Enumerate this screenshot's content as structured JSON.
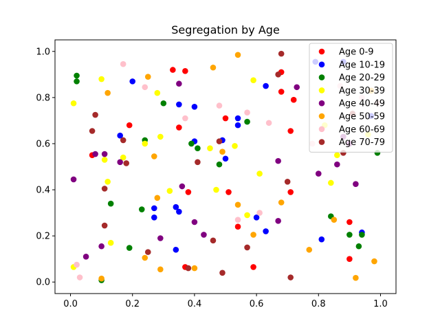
{
  "chart_data": {
    "type": "scatter",
    "title": "Segregation by Age",
    "xlabel": "",
    "ylabel": "",
    "xlim": [
      -0.05,
      1.05
    ],
    "ylim": [
      -0.05,
      1.05
    ],
    "xticks": [
      "0.0",
      "0.2",
      "0.4",
      "0.6",
      "0.8",
      "1.0"
    ],
    "yticks": [
      "0.0",
      "0.2",
      "0.4",
      "0.6",
      "0.8",
      "1.0"
    ],
    "grid": false,
    "legend_position": "top-right",
    "series": [
      {
        "name": "Age 0-9",
        "color": "#ff0000",
        "points": [
          [
            0.33,
            0.92
          ],
          [
            0.37,
            0.915
          ],
          [
            0.68,
            0.91
          ],
          [
            0.68,
            0.825
          ],
          [
            0.72,
            0.79
          ],
          [
            0.19,
            0.68
          ],
          [
            0.35,
            0.67
          ],
          [
            0.5,
            0.71
          ],
          [
            0.71,
            0.655
          ],
          [
            0.07,
            0.55
          ],
          [
            0.38,
            0.39
          ],
          [
            0.51,
            0.39
          ],
          [
            0.71,
            0.39
          ],
          [
            0.54,
            0.24
          ],
          [
            0.9,
            0.26
          ],
          [
            0.59,
            0.065
          ],
          [
            0.37,
            0.065
          ],
          [
            0.9,
            0.1
          ]
        ]
      },
      {
        "name": "Age 10-19",
        "color": "#0000ff",
        "points": [
          [
            0.79,
            0.955
          ],
          [
            0.88,
            0.955
          ],
          [
            0.2,
            0.87
          ],
          [
            0.63,
            0.85
          ],
          [
            0.35,
            0.77
          ],
          [
            0.4,
            0.76
          ],
          [
            0.54,
            0.71
          ],
          [
            0.54,
            0.68
          ],
          [
            0.16,
            0.635
          ],
          [
            0.49,
            0.615
          ],
          [
            0.4,
            0.61
          ],
          [
            0.5,
            0.535
          ],
          [
            0.27,
            0.32
          ],
          [
            0.34,
            0.325
          ],
          [
            0.35,
            0.305
          ],
          [
            0.27,
            0.28
          ],
          [
            0.6,
            0.28
          ],
          [
            0.63,
            0.22
          ],
          [
            0.81,
            0.185
          ],
          [
            0.94,
            0.215
          ],
          [
            0.34,
            0.14
          ],
          [
            0.97,
            0.72
          ]
        ]
      },
      {
        "name": "Age 20-29",
        "color": "#008000",
        "points": [
          [
            0.02,
            0.895
          ],
          [
            0.02,
            0.87
          ],
          [
            0.3,
            0.775
          ],
          [
            0.57,
            0.695
          ],
          [
            0.24,
            0.615
          ],
          [
            0.39,
            0.6
          ],
          [
            0.41,
            0.58
          ],
          [
            0.48,
            0.51
          ],
          [
            0.13,
            0.34
          ],
          [
            0.23,
            0.315
          ],
          [
            0.84,
            0.285
          ],
          [
            0.94,
            0.205
          ],
          [
            0.9,
            0.205
          ],
          [
            0.93,
            0.155
          ],
          [
            0.19,
            0.148
          ],
          [
            0.1,
            0.008
          ],
          [
            0.99,
            0.56
          ]
        ]
      },
      {
        "name": "Age 30-39",
        "color": "#ffff00",
        "points": [
          [
            0.1,
            0.88
          ],
          [
            0.59,
            0.875
          ],
          [
            0.28,
            0.82
          ],
          [
            0.01,
            0.775
          ],
          [
            0.29,
            0.63
          ],
          [
            0.24,
            0.6
          ],
          [
            0.45,
            0.58
          ],
          [
            0.53,
            0.59
          ],
          [
            0.17,
            0.54
          ],
          [
            0.11,
            0.53
          ],
          [
            0.61,
            0.47
          ],
          [
            0.12,
            0.435
          ],
          [
            0.32,
            0.395
          ],
          [
            0.47,
            0.4
          ],
          [
            0.84,
            0.43
          ],
          [
            0.57,
            0.29
          ],
          [
            0.13,
            0.17
          ],
          [
            0.01,
            0.065
          ],
          [
            0.86,
            0.55
          ],
          [
            0.96,
            0.64
          ],
          [
            0.82,
            0.68
          ]
        ]
      },
      {
        "name": "Age 40-49",
        "color": "#800080",
        "points": [
          [
            0.35,
            0.86
          ],
          [
            0.73,
            0.845
          ],
          [
            0.86,
            0.51
          ],
          [
            0.11,
            0.555
          ],
          [
            0.08,
            0.555
          ],
          [
            0.16,
            0.52
          ],
          [
            0.01,
            0.445
          ],
          [
            0.36,
            0.415
          ],
          [
            0.8,
            0.47
          ],
          [
            0.67,
            0.525
          ],
          [
            0.92,
            0.425
          ],
          [
            0.4,
            0.26
          ],
          [
            0.67,
            0.265
          ],
          [
            0.43,
            0.205
          ],
          [
            0.29,
            0.19
          ],
          [
            0.1,
            0.155
          ],
          [
            0.05,
            0.11
          ],
          [
            0.9,
            0.6
          ],
          [
            0.88,
            0.63
          ]
        ]
      },
      {
        "name": "Age 50-59",
        "color": "#ffa500",
        "points": [
          [
            0.54,
            0.985
          ],
          [
            0.46,
            0.93
          ],
          [
            0.25,
            0.89
          ],
          [
            0.12,
            0.82
          ],
          [
            0.49,
            0.565
          ],
          [
            0.27,
            0.545
          ],
          [
            0.28,
            0.365
          ],
          [
            0.54,
            0.335
          ],
          [
            0.68,
            0.345
          ],
          [
            0.85,
            0.27
          ],
          [
            0.59,
            0.205
          ],
          [
            0.24,
            0.105
          ],
          [
            0.77,
            0.14
          ],
          [
            0.4,
            0.06
          ],
          [
            0.29,
            0.055
          ],
          [
            0.1,
            0.015
          ],
          [
            0.92,
            0.018
          ],
          [
            0.98,
            0.09
          ],
          [
            0.97,
            0.83
          ]
        ]
      },
      {
        "name": "Age 60-69",
        "color": "#ffc0cb",
        "points": [
          [
            0.17,
            0.945
          ],
          [
            0.24,
            0.845
          ],
          [
            0.48,
            0.765
          ],
          [
            0.57,
            0.735
          ],
          [
            0.64,
            0.69
          ],
          [
            0.37,
            0.71
          ],
          [
            0.78,
            0.6
          ],
          [
            0.54,
            0.27
          ],
          [
            0.61,
            0.3
          ],
          [
            0.02,
            0.075
          ],
          [
            0.03,
            0.02
          ],
          [
            0.94,
            0.8
          ],
          [
            0.99,
            0.775
          ],
          [
            0.87,
            0.85
          ]
        ]
      },
      {
        "name": "Age 70-79",
        "color": "#a52a2a",
        "points": [
          [
            0.68,
            0.99
          ],
          [
            0.67,
            0.9
          ],
          [
            0.08,
            0.725
          ],
          [
            0.07,
            0.655
          ],
          [
            0.17,
            0.615
          ],
          [
            0.18,
            0.515
          ],
          [
            0.48,
            0.61
          ],
          [
            0.41,
            0.52
          ],
          [
            0.7,
            0.435
          ],
          [
            0.11,
            0.405
          ],
          [
            0.11,
            0.245
          ],
          [
            0.46,
            0.18
          ],
          [
            0.57,
            0.15
          ],
          [
            0.25,
            0.13
          ],
          [
            0.38,
            0.06
          ],
          [
            0.49,
            0.04
          ],
          [
            0.71,
            0.02
          ],
          [
            0.88,
            0.56
          ],
          [
            0.91,
            0.73
          ]
        ]
      }
    ]
  }
}
